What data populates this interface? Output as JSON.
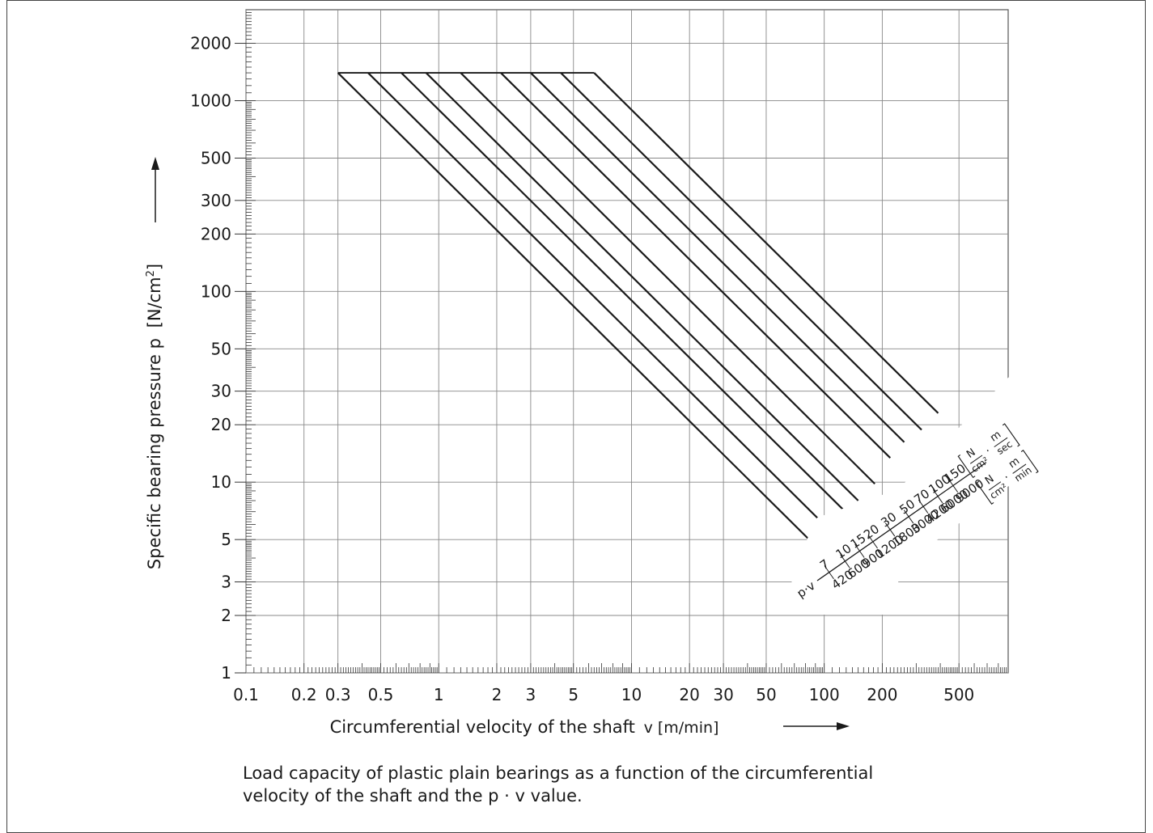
{
  "chart_data": {
    "type": "line",
    "title": "",
    "xlabel_main": "Circumferential velocity of the shaft",
    "xlabel_unit": "v [m/min]",
    "ylabel_main": "Specific bearing pressure p",
    "ylabel_unit": "[N/cm",
    "ylabel_unit_sup": "2",
    "ylabel_unit_end": "]",
    "x_scale": "log",
    "y_scale": "log",
    "xlim": [
      0.1,
      900
    ],
    "ylim": [
      1,
      3000
    ],
    "grid": true,
    "x_ticks": [
      0.1,
      0.2,
      0.3,
      0.5,
      1,
      2,
      3,
      5,
      10,
      20,
      30,
      50,
      100,
      200,
      500
    ],
    "x_tick_labels": [
      "0.1",
      "0.2",
      "0.3",
      "0.5",
      "1",
      "2",
      "3",
      "5",
      "10",
      "20",
      "30",
      "50",
      "100",
      "200",
      "500"
    ],
    "y_ticks": [
      1,
      2,
      3,
      5,
      10,
      20,
      30,
      50,
      100,
      200,
      300,
      500,
      1000,
      2000
    ],
    "y_tick_labels": [
      "1",
      "2",
      "3",
      "5",
      "10",
      "20",
      "30",
      "50",
      "100",
      "200",
      "300",
      "500",
      "1000",
      "2000"
    ],
    "p_max": 1400,
    "series": [
      {
        "pv_sec": "7",
        "pv_min": "420",
        "x": [
          0.3,
          87
        ],
        "y": [
          1400,
          4.8
        ]
      },
      {
        "pv_sec": "10",
        "pv_min": "600",
        "x": [
          0.43,
          105
        ],
        "y": [
          1400,
          5.7
        ]
      },
      {
        "pv_sec": "15",
        "pv_min": "900",
        "x": [
          0.64,
          125
        ],
        "y": [
          1400,
          7.2
        ]
      },
      {
        "pv_sec": "20",
        "pv_min": "1200",
        "x": [
          0.86,
          150
        ],
        "y": [
          1400,
          8.0
        ]
      },
      {
        "pv_sec": "30",
        "pv_min": "1800",
        "x": [
          1.3,
          183
        ],
        "y": [
          1400,
          9.8
        ]
      },
      {
        "pv_sec": "50",
        "pv_min": "3000",
        "x": [
          2.1,
          220
        ],
        "y": [
          1400,
          13.4
        ]
      },
      {
        "pv_sec": "70",
        "pv_min": "4200",
        "x": [
          3.0,
          260
        ],
        "y": [
          1400,
          16.2
        ]
      },
      {
        "pv_sec": "100",
        "pv_min": "6000",
        "x": [
          4.3,
          320
        ],
        "y": [
          1400,
          18.8
        ]
      },
      {
        "pv_sec": "150",
        "pv_min": "9000",
        "x": [
          6.4,
          390
        ],
        "y": [
          1400,
          23.0
        ]
      }
    ],
    "pv_label": "p·v",
    "unit_top": {
      "num1": "N",
      "den1": "cm²",
      "dot": "·",
      "num2": "m",
      "den2": "sec"
    },
    "unit_bottom": {
      "num1": "N",
      "den1": "cm²",
      "dot": "·",
      "num2": "m",
      "den2": "min"
    }
  },
  "caption_line1": "Load capacity of plastic plain bearings as a function of the circumferential",
  "caption_line2": "velocity of the shaft and the p · v value."
}
